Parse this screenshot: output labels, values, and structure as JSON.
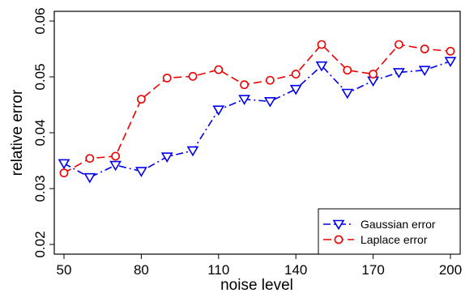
{
  "chart_data": {
    "type": "line",
    "xlabel": "noise level",
    "ylabel": "relative error",
    "x": [
      50,
      60,
      70,
      80,
      90,
      100,
      110,
      120,
      130,
      140,
      150,
      160,
      170,
      180,
      190,
      200
    ],
    "xticks": [
      "50",
      "80",
      "110",
      "140",
      "170",
      "200"
    ],
    "yticks": [
      "0.02",
      "0.03",
      "0.04",
      "0.05",
      "0.06"
    ],
    "ylim": [
      0.02,
      0.06
    ],
    "xlim": [
      50,
      200
    ],
    "legend_position": "bottom-right",
    "grid": false,
    "series": [
      {
        "name": "Gaussian error",
        "color": "#0000ee",
        "marker": "triangle-down",
        "linestyle": "dashdot",
        "values": [
          0.0345,
          0.032,
          0.0342,
          0.0331,
          0.0357,
          0.0368,
          0.0441,
          0.046,
          0.0456,
          0.0478,
          0.052,
          0.0471,
          0.0493,
          0.0508,
          0.0512,
          0.0528
        ]
      },
      {
        "name": "Laplace error",
        "color": "#ee0000",
        "marker": "circle",
        "linestyle": "dashed",
        "values": [
          0.0328,
          0.0354,
          0.0358,
          0.046,
          0.0498,
          0.0501,
          0.0513,
          0.0486,
          0.0494,
          0.0505,
          0.0558,
          0.0512,
          0.0505,
          0.0558,
          0.055,
          0.0546
        ]
      }
    ]
  }
}
